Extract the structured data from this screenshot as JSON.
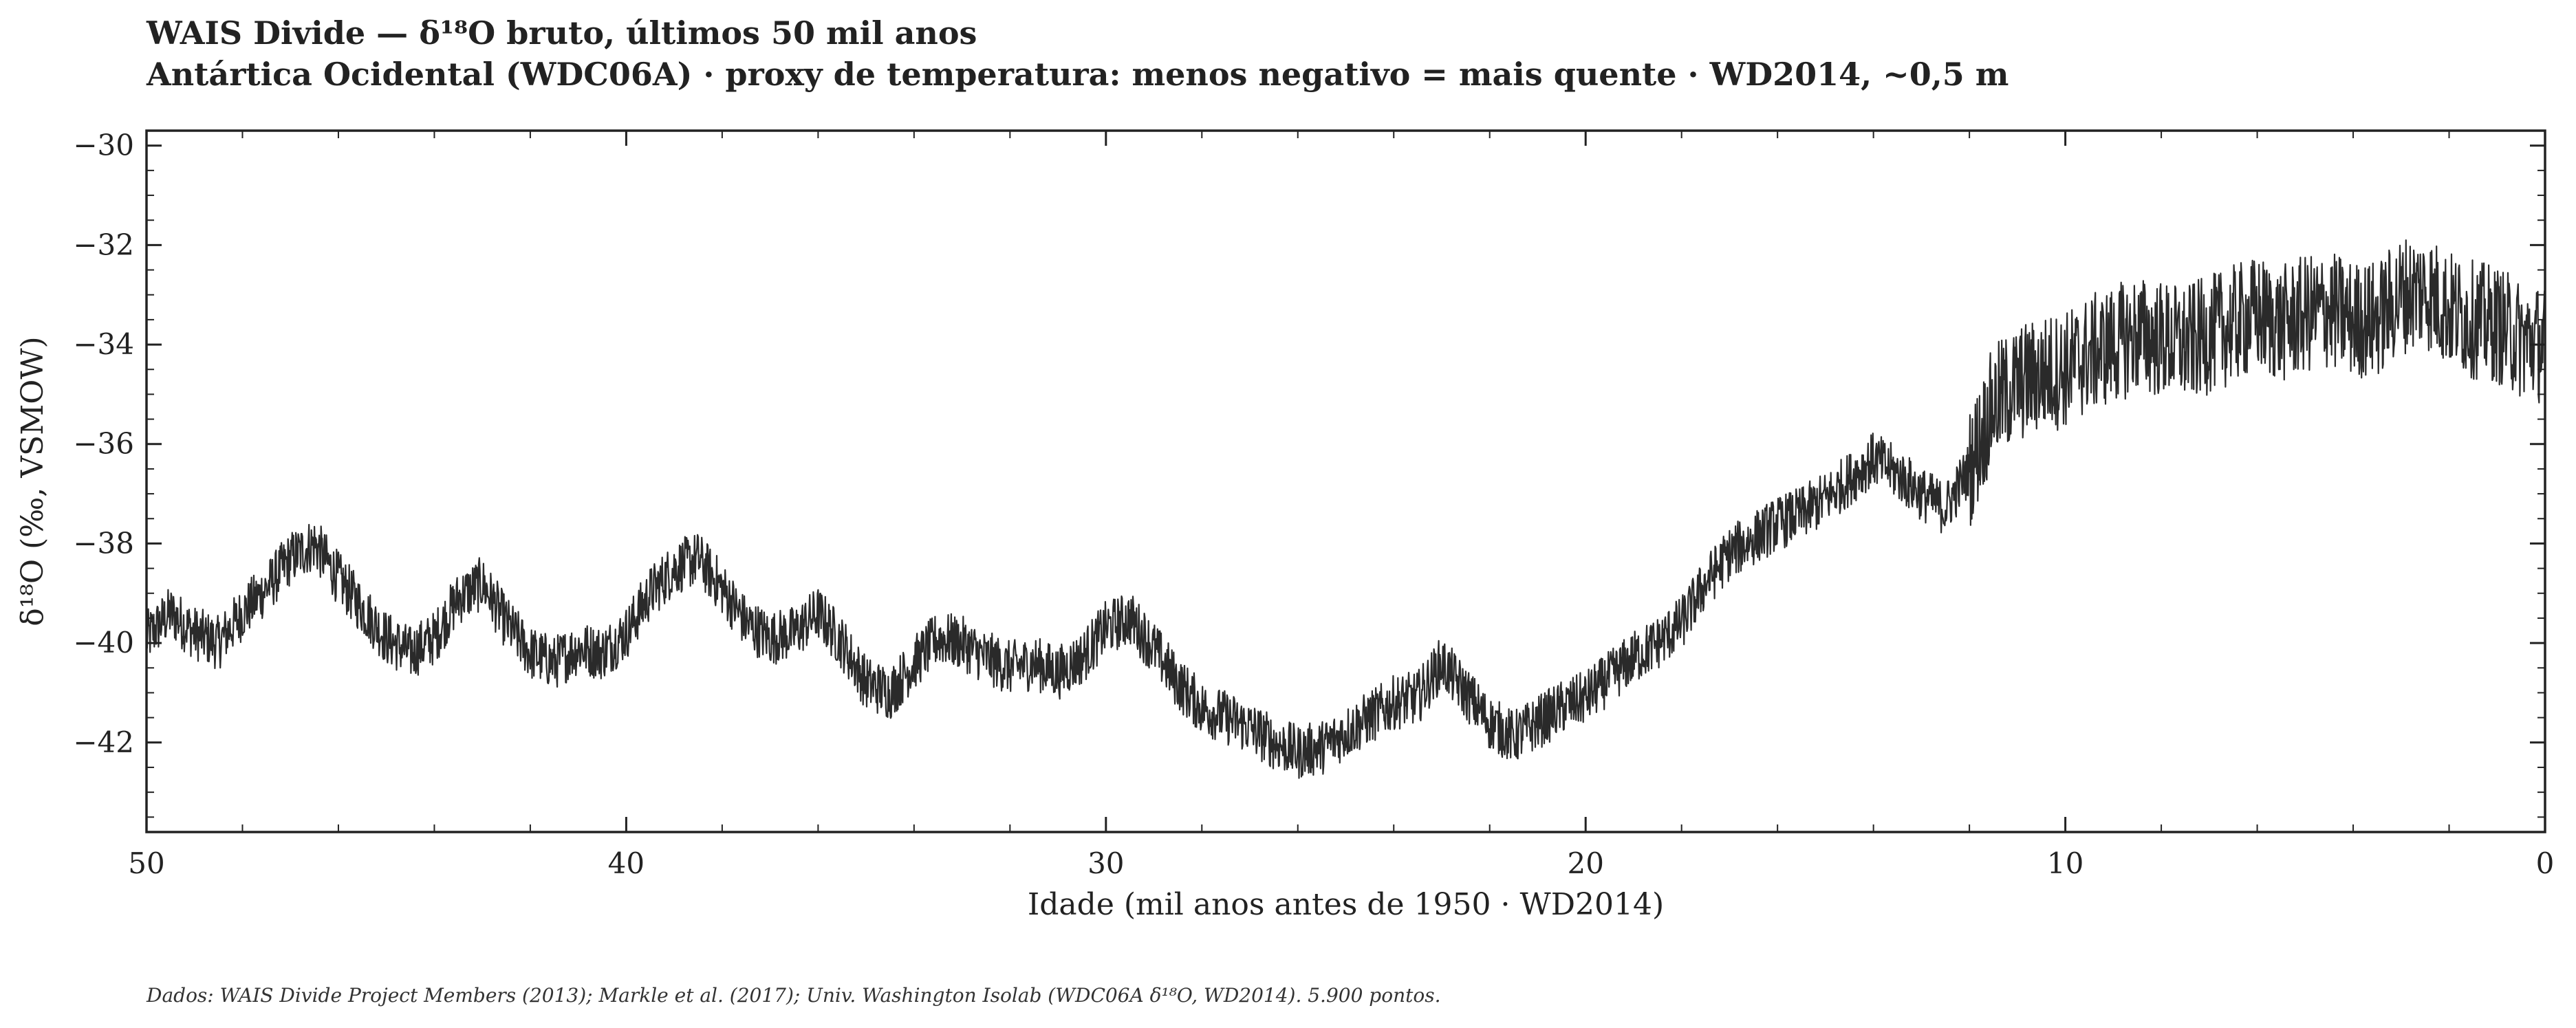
{
  "chart_data": {
    "type": "line",
    "title": "WAIS Divide — δ¹⁸O bruto, últimos 50 mil anos",
    "subtitle": "Antártica Ocidental (WDC06A) · proxy de temperatura: menos negativo = mais quente · WD2014, ~0,5 m",
    "xlabel": "Idade (mil anos antes de 1950 · WD2014)",
    "ylabel": "δ¹⁸O (‰, VSMOW)",
    "xlim": [
      50,
      0
    ],
    "ylim": [
      -43.8,
      -29.7
    ],
    "x_inverted": true,
    "xticks": [
      50,
      40,
      30,
      20,
      10,
      0
    ],
    "xtick_labels": [
      "50",
      "40",
      "30",
      "20",
      "10",
      "0"
    ],
    "yticks": [
      -30,
      -32,
      -34,
      -36,
      -38,
      -40,
      -42
    ],
    "ytick_labels": [
      "−30",
      "−32",
      "−34",
      "−36",
      "−38",
      "−40",
      "−42"
    ],
    "grid": false,
    "footnote": "Dados: WAIS Divide Project Members (2013); Markle et al. (2017); Univ. Washington Isolab (WDC06A δ¹⁸O, WD2014). 5.900 pontos.",
    "series": [
      {
        "x": [
          50,
          49.5,
          49,
          48.5,
          48,
          47.5,
          47,
          46.5,
          46,
          45.5,
          45,
          44.5,
          44,
          43.5,
          43,
          42.5,
          42,
          41.5,
          41,
          40.5,
          40,
          39.5,
          39,
          38.5,
          38,
          37.5,
          37,
          36.5,
          36,
          35.5,
          35,
          34.5,
          34,
          33.5,
          33,
          32.5,
          32,
          31.5,
          31,
          30.5,
          30,
          29.5,
          29,
          28.5,
          28,
          27.5,
          27,
          26.5,
          26,
          25.5,
          25,
          24.5,
          24,
          23.5,
          23,
          22.5,
          22,
          21.5,
          21,
          20.5,
          20,
          19.5,
          19,
          18.5,
          18,
          17.5,
          17,
          16.5,
          16,
          15.5,
          15,
          14.5,
          14,
          13.5,
          13,
          12.5,
          12,
          11.5,
          11,
          10.5,
          10,
          9.5,
          9,
          8.5,
          8,
          7.5,
          7,
          6.5,
          6,
          5.5,
          5,
          4.5,
          4,
          3.5,
          3,
          2.5,
          2,
          1.5,
          1,
          0.5,
          0
        ],
        "y": [
          -39.9,
          -39.4,
          -39.8,
          -40.0,
          -39.4,
          -38.9,
          -38.3,
          -38.0,
          -38.7,
          -39.3,
          -39.9,
          -40.2,
          -39.9,
          -39.1,
          -38.8,
          -39.6,
          -40.2,
          -40.4,
          -40.1,
          -40.2,
          -39.8,
          -39.0,
          -38.5,
          -38.3,
          -38.9,
          -39.6,
          -39.9,
          -39.8,
          -39.4,
          -40.0,
          -40.8,
          -41.0,
          -40.4,
          -39.9,
          -40.0,
          -40.3,
          -40.5,
          -40.4,
          -40.6,
          -40.3,
          -39.7,
          -39.5,
          -40.1,
          -40.8,
          -41.3,
          -41.5,
          -41.7,
          -42.0,
          -42.2,
          -42.1,
          -41.8,
          -41.5,
          -41.2,
          -41.1,
          -40.4,
          -41.0,
          -41.6,
          -41.9,
          -41.6,
          -41.3,
          -41.1,
          -40.7,
          -40.3,
          -40.0,
          -39.6,
          -38.8,
          -38.2,
          -37.9,
          -37.6,
          -37.4,
          -37.1,
          -36.7,
          -36.3,
          -36.6,
          -37.0,
          -37.3,
          -36.5,
          -35.2,
          -34.8,
          -34.6,
          -34.5,
          -34.2,
          -34.0,
          -33.8,
          -33.9,
          -34.0,
          -33.8,
          -33.6,
          -33.4,
          -33.6,
          -33.4,
          -33.3,
          -33.5,
          -33.5,
          -33.0,
          -32.9,
          -33.3,
          -33.5,
          -33.6,
          -33.9,
          -34.0
        ]
      }
    ]
  }
}
